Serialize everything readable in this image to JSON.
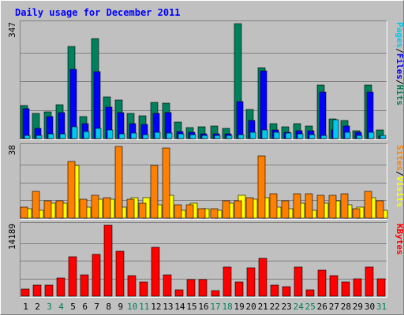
{
  "chart_data": [
    {
      "type": "bar",
      "title": "Daily usage for December 2011",
      "max_label": "347",
      "categories": [
        "1",
        "2",
        "3",
        "4",
        "5",
        "6",
        "7",
        "8",
        "9",
        "10",
        "11",
        "12",
        "13",
        "14",
        "15",
        "16",
        "17",
        "18",
        "19",
        "20",
        "21",
        "22",
        "23",
        "24",
        "25",
        "26",
        "27",
        "28",
        "29",
        "30",
        "31"
      ],
      "weekend_days": [
        "3",
        "4",
        "10",
        "11",
        "17",
        "18",
        "24",
        "25",
        "31"
      ],
      "ylim": [
        0,
        347
      ],
      "grid": true,
      "series": [
        {
          "name": "Hits",
          "color": "#00805c",
          "values": [
            100,
            75,
            80,
            102,
            278,
            66,
            301,
            127,
            117,
            76,
            69,
            110,
            106,
            50,
            33,
            36,
            38,
            31,
            347,
            88,
            213,
            46,
            36,
            46,
            37,
            162,
            60,
            54,
            24,
            162,
            25
          ]
        },
        {
          "name": "Files",
          "color": "#0000ff",
          "values": [
            90,
            32,
            67,
            78,
            208,
            46,
            203,
            96,
            79,
            45,
            43,
            77,
            79,
            22,
            19,
            15,
            14,
            14,
            111,
            55,
            204,
            25,
            20,
            24,
            23,
            141,
            27,
            37,
            19,
            140,
            8
          ]
        },
        {
          "name": "Pages",
          "color": "#00c8f0",
          "values": [
            10,
            9,
            15,
            14,
            35,
            21,
            30,
            26,
            14,
            17,
            12,
            18,
            16,
            14,
            12,
            10,
            10,
            9,
            11,
            18,
            27,
            20,
            16,
            15,
            11,
            10,
            58,
            20,
            10,
            20,
            9
          ]
        }
      ],
      "side_label": [
        "Pages",
        "/",
        "Files",
        "/",
        "Hits"
      ],
      "side_colors": [
        "#00c8f0",
        "#000000",
        "#0000ff",
        "#000000",
        "#00805c"
      ]
    },
    {
      "type": "bar",
      "max_label": "38",
      "categories": [
        "1",
        "2",
        "3",
        "4",
        "5",
        "6",
        "7",
        "8",
        "9",
        "10",
        "11",
        "12",
        "13",
        "14",
        "15",
        "16",
        "17",
        "18",
        "19",
        "20",
        "21",
        "22",
        "23",
        "24",
        "25",
        "26",
        "27",
        "28",
        "29",
        "30",
        "31"
      ],
      "ylim": [
        0,
        38
      ],
      "grid": true,
      "series": [
        {
          "name": "Visits",
          "color": "#ffff00",
          "values": [
            5,
            4,
            8,
            8,
            28,
            6,
            10,
            10,
            6,
            11,
            11,
            7,
            12,
            4,
            8,
            5,
            4,
            8,
            12,
            10,
            11,
            6,
            5,
            8,
            4,
            8,
            9,
            7,
            6,
            11,
            4
          ]
        },
        {
          "name": "Sites",
          "color": "#ff8000",
          "values": [
            6,
            14,
            9,
            9,
            30,
            10,
            12,
            11,
            38,
            10,
            8,
            28,
            37,
            7,
            7,
            5,
            5,
            9,
            9,
            11,
            33,
            13,
            9,
            13,
            13,
            12,
            12,
            13,
            5,
            14,
            9
          ]
        }
      ],
      "side_label": [
        "Sites",
        "/",
        "Visits"
      ],
      "side_colors": [
        "#ff8000",
        "#000000",
        "#ffff00"
      ]
    },
    {
      "type": "bar",
      "max_label": "14189",
      "categories": [
        "1",
        "2",
        "3",
        "4",
        "5",
        "6",
        "7",
        "8",
        "9",
        "10",
        "11",
        "12",
        "13",
        "14",
        "15",
        "16",
        "17",
        "18",
        "19",
        "20",
        "21",
        "22",
        "23",
        "24",
        "25",
        "26",
        "27",
        "28",
        "29",
        "30",
        "31"
      ],
      "ylim": [
        0,
        14189
      ],
      "grid": true,
      "series": [
        {
          "name": "KBytes",
          "color": "#ff0000",
          "values": [
            1400,
            2200,
            2200,
            3600,
            7900,
            4200,
            8300,
            14189,
            9000,
            4100,
            2900,
            9800,
            4200,
            1200,
            3300,
            3300,
            1100,
            5900,
            2800,
            5700,
            7500,
            2200,
            1900,
            5800,
            1200,
            5200,
            4100,
            2900,
            3400,
            5900,
            3400
          ]
        }
      ],
      "side_label": [
        "KBytes"
      ],
      "side_colors": [
        "#ff0000"
      ]
    }
  ]
}
